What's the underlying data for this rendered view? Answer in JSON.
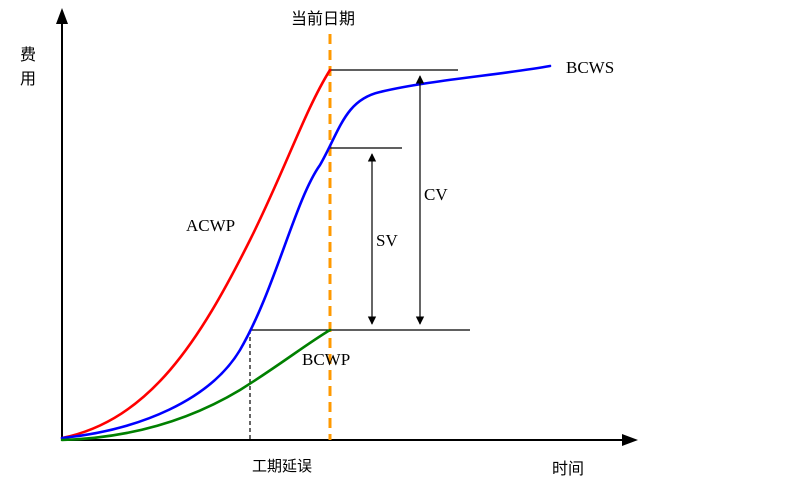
{
  "axes": {
    "y_label_top": "费",
    "y_label_bottom": "用",
    "x_label": "时间"
  },
  "markers": {
    "current_date": "当前日期",
    "schedule_delay": "工期延误"
  },
  "curves": {
    "acwp": {
      "label": "ACWP",
      "color": "#ff0000"
    },
    "bcws": {
      "label": "BCWS",
      "color": "#0000ff"
    },
    "bcwp": {
      "label": "BCWP",
      "color": "#008000"
    }
  },
  "variances": {
    "cv": "CV",
    "sv": "SV"
  },
  "colors": {
    "current_date_line": "#ff9900",
    "axis": "#000000"
  }
}
